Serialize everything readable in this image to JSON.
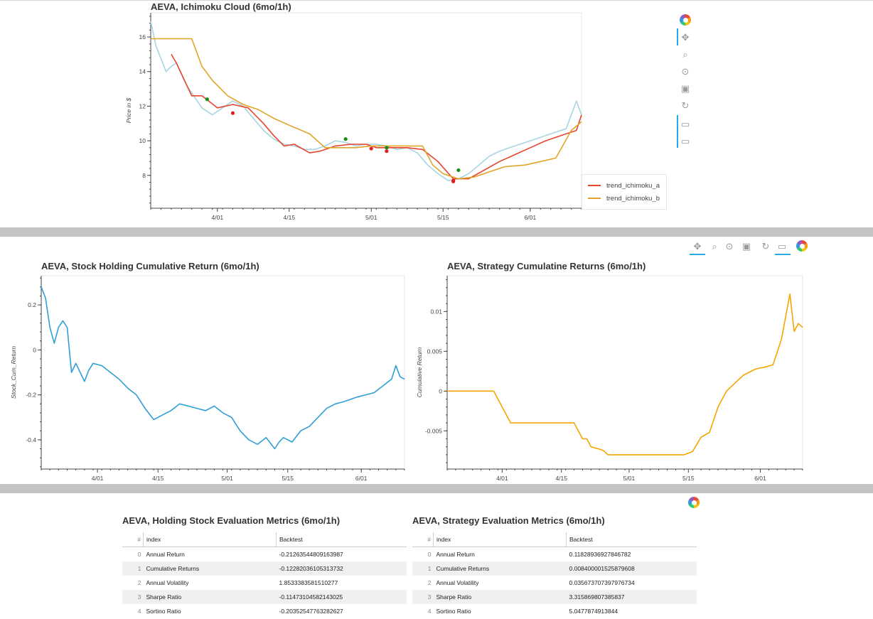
{
  "colors": {
    "price": "#a8d3e3",
    "trend_a": "#e8452c",
    "trend_b": "#e0a427",
    "buy": "#1a8c1a",
    "sell": "#e02020",
    "holding": "#2e9fd6",
    "strategy": "#f5a500"
  },
  "toolbar": {
    "logo_icon": "bokeh-logo-icon",
    "pan_icon": "pan-icon",
    "box_zoom_icon": "box-zoom-icon",
    "wheel_zoom_icon": "wheel-zoom-icon",
    "save_icon": "save-icon",
    "reset_icon": "reset-icon",
    "hover_icon": "hover-icon"
  },
  "chart_data": [
    {
      "type": "line",
      "title": "AEVA, Ichimoku Cloud (6mo/1h)",
      "ylabel": "Price in $",
      "xlabel": "",
      "x_ticks": [
        "4/01",
        "4/15",
        "5/01",
        "5/15",
        "6/01"
      ],
      "y_ticks": [
        "8",
        "10",
        "12",
        "14",
        "16"
      ],
      "xlim": [
        "3/19",
        "6/11"
      ],
      "ylim": [
        6.1,
        17.4
      ],
      "legend_position": "bottom-right-outside",
      "series": [
        {
          "name": "",
          "key": "price",
          "x": [
            "3/19",
            "3/20",
            "3/22",
            "3/23",
            "3/24",
            "3/26",
            "3/29",
            "3/31",
            "4/02",
            "4/04",
            "4/06",
            "4/08",
            "4/10",
            "4/12",
            "4/14",
            "4/16",
            "4/18",
            "4/20",
            "4/22",
            "4/24",
            "4/26",
            "4/28",
            "4/30",
            "5/02",
            "5/04",
            "5/06",
            "5/08",
            "5/10",
            "5/12",
            "5/14",
            "5/16",
            "5/18",
            "5/20",
            "5/22",
            "5/24",
            "5/26",
            "5/28",
            "5/31",
            "6/02",
            "6/04",
            "6/06",
            "6/08",
            "6/10",
            "6/11"
          ],
          "values": [
            16.9,
            15.5,
            14.0,
            14.3,
            14.5,
            13.2,
            11.9,
            11.5,
            11.9,
            12.3,
            12.0,
            11.3,
            10.6,
            10.1,
            9.8,
            9.7,
            9.5,
            9.5,
            9.7,
            10.0,
            9.9,
            9.7,
            9.8,
            9.8,
            9.7,
            9.5,
            9.6,
            9.3,
            8.6,
            8.1,
            7.7,
            7.8,
            8.1,
            8.6,
            9.1,
            9.4,
            9.6,
            9.9,
            10.1,
            10.3,
            10.5,
            10.7,
            12.3,
            11.5
          ]
        },
        {
          "name": "trend_ichimoku_a",
          "key": "trend_a",
          "x": [
            "3/23",
            "3/24",
            "3/27",
            "3/29",
            "4/01",
            "4/04",
            "4/07",
            "4/10",
            "4/12",
            "4/14",
            "4/16",
            "4/19",
            "4/21",
            "4/24",
            "4/27",
            "4/30",
            "5/02",
            "5/05",
            "5/08",
            "5/11",
            "5/14",
            "5/17",
            "5/20",
            "5/23",
            "5/26",
            "5/29",
            "6/01",
            "6/04",
            "6/07",
            "6/10",
            "6/11"
          ],
          "values": [
            15.0,
            14.5,
            12.6,
            12.6,
            11.9,
            12.1,
            11.9,
            11.0,
            10.3,
            9.7,
            9.8,
            9.3,
            9.4,
            9.7,
            9.8,
            9.8,
            9.6,
            9.6,
            9.6,
            9.5,
            8.8,
            7.8,
            7.8,
            8.3,
            8.8,
            9.2,
            9.6,
            10.0,
            10.3,
            10.6,
            11.5
          ]
        },
        {
          "name": "trend_ichimoku_b",
          "key": "trend_b",
          "x": [
            "3/19",
            "3/27",
            "3/29",
            "3/31",
            "4/03",
            "4/06",
            "4/09",
            "4/12",
            "4/15",
            "4/19",
            "4/22",
            "4/25",
            "4/28",
            "5/01",
            "5/04",
            "5/07",
            "5/11",
            "5/13",
            "5/15",
            "5/18",
            "5/21",
            "5/24",
            "5/27",
            "5/31",
            "6/03",
            "6/06",
            "6/09",
            "6/11"
          ],
          "values": [
            15.9,
            15.9,
            14.3,
            13.5,
            12.6,
            12.1,
            11.8,
            11.3,
            10.9,
            10.4,
            9.6,
            9.6,
            9.6,
            9.7,
            9.7,
            9.7,
            9.7,
            8.6,
            8.1,
            7.8,
            7.9,
            8.2,
            8.5,
            8.6,
            8.8,
            9.0,
            10.6,
            11.1
          ]
        }
      ],
      "markers": [
        {
          "kind": "buy",
          "x": "3/30",
          "y": 12.4
        },
        {
          "kind": "sell",
          "x": "4/04",
          "y": 11.6
        },
        {
          "kind": "buy",
          "x": "4/26",
          "y": 10.1
        },
        {
          "kind": "sell",
          "x": "5/01",
          "y": 9.55
        },
        {
          "kind": "buy",
          "x": "5/04",
          "y": 9.6
        },
        {
          "kind": "sell",
          "x": "5/04",
          "y": 9.4
        },
        {
          "kind": "sell",
          "x": "5/17",
          "y": 7.7
        },
        {
          "kind": "sell",
          "x": "5/17",
          "y": 7.65
        },
        {
          "kind": "buy",
          "x": "5/18",
          "y": 8.3
        }
      ]
    },
    {
      "type": "line",
      "title": "AEVA, Stock Holding Cumulative Return (6mo/1h)",
      "ylabel": "Stock_Cum_Return",
      "xlabel": "",
      "x_ticks": [
        "4/01",
        "4/15",
        "5/01",
        "5/15",
        "6/01"
      ],
      "y_ticks": [
        "-0.4",
        "-0.2",
        "0",
        "0.2"
      ],
      "xlim": [
        "3/19",
        "6/11"
      ],
      "ylim": [
        -0.53,
        0.33
      ],
      "series": [
        {
          "name": "",
          "key": "holding",
          "x": [
            "3/19",
            "3/20",
            "3/21",
            "3/22",
            "3/23",
            "3/24",
            "3/25",
            "3/26",
            "3/27",
            "3/28",
            "3/29",
            "3/30",
            "3/31",
            "4/02",
            "4/04",
            "4/06",
            "4/08",
            "4/10",
            "4/12",
            "4/14",
            "4/16",
            "4/18",
            "4/20",
            "4/22",
            "4/24",
            "4/26",
            "4/28",
            "4/30",
            "5/02",
            "5/04",
            "5/06",
            "5/08",
            "5/10",
            "5/12",
            "5/13",
            "5/14",
            "5/16",
            "5/18",
            "5/20",
            "5/22",
            "5/24",
            "5/26",
            "5/28",
            "5/31",
            "6/02",
            "6/04",
            "6/06",
            "6/08",
            "6/09",
            "6/10",
            "6/11"
          ],
          "values": [
            0.28,
            0.23,
            0.1,
            0.03,
            0.1,
            0.13,
            0.1,
            -0.1,
            -0.06,
            -0.1,
            -0.14,
            -0.09,
            -0.06,
            -0.07,
            -0.1,
            -0.13,
            -0.17,
            -0.2,
            -0.26,
            -0.31,
            -0.29,
            -0.27,
            -0.24,
            -0.25,
            -0.26,
            -0.27,
            -0.25,
            -0.28,
            -0.3,
            -0.36,
            -0.4,
            -0.42,
            -0.39,
            -0.44,
            -0.41,
            -0.39,
            -0.41,
            -0.36,
            -0.34,
            -0.3,
            -0.26,
            -0.24,
            -0.23,
            -0.21,
            -0.2,
            -0.19,
            -0.16,
            -0.13,
            -0.07,
            -0.12,
            -0.13
          ]
        }
      ]
    },
    {
      "type": "line",
      "title": "AEVA, Strategy Cumulatine Returns (6mo/1h)",
      "ylabel": "Cumulative Return",
      "xlabel": "",
      "x_ticks": [
        "4/01",
        "4/15",
        "5/01",
        "5/15",
        "6/01"
      ],
      "y_ticks": [
        "-0.005",
        "0",
        "0.005",
        "0.01"
      ],
      "xlim": [
        "3/19",
        "6/11"
      ],
      "ylim": [
        -0.0098,
        0.0145
      ],
      "series": [
        {
          "name": "",
          "key": "strategy",
          "x": [
            "3/19",
            "3/30",
            "3/31",
            "4/01",
            "4/02",
            "4/03",
            "4/18",
            "4/19",
            "4/20",
            "4/21",
            "4/22",
            "4/24",
            "4/25",
            "4/26",
            "5/10",
            "5/12",
            "5/14",
            "5/16",
            "5/18",
            "5/20",
            "5/22",
            "5/24",
            "5/26",
            "5/28",
            "5/31",
            "6/02",
            "6/04",
            "6/06",
            "6/08",
            "6/09",
            "6/10",
            "6/11"
          ],
          "values": [
            0,
            0,
            -0.001,
            -0.002,
            -0.003,
            -0.004,
            -0.004,
            -0.005,
            -0.006,
            -0.006,
            -0.007,
            -0.0073,
            -0.0075,
            -0.008,
            -0.008,
            -0.008,
            -0.008,
            -0.0076,
            -0.0058,
            -0.0052,
            -0.002,
            0,
            0.001,
            0.002,
            0.0028,
            0.003,
            0.0033,
            0.0065,
            0.0122,
            0.0075,
            0.0085,
            0.008
          ]
        }
      ]
    }
  ],
  "metrics_tables": [
    {
      "title": "AEVA, Holding Stock Evaluation Metrics (6mo/1h)",
      "headers": [
        "#",
        "index",
        "Backtest"
      ],
      "rows": [
        {
          "num": "0",
          "index": "Annual Return",
          "value": "-0.21263544809163987"
        },
        {
          "num": "1",
          "index": "Cumulative Returns",
          "value": "-0.12282036105313732"
        },
        {
          "num": "2",
          "index": "Annual Volatility",
          "value": "1.8533383581510277"
        },
        {
          "num": "3",
          "index": "Sharpe Ratio",
          "value": "-0.11473104582143025"
        },
        {
          "num": "4",
          "index": "Sortino Ratio",
          "value": "-0.20352547763282627"
        }
      ]
    },
    {
      "title": "AEVA, Strategy Evaluation Metrics (6mo/1h)",
      "headers": [
        "#",
        "index",
        "Backtest"
      ],
      "rows": [
        {
          "num": "0",
          "index": "Annual Return",
          "value": "0.11828936927846782"
        },
        {
          "num": "1",
          "index": "Cumulative Returns",
          "value": "0.008400001525879608"
        },
        {
          "num": "2",
          "index": "Annual Volatility",
          "value": "0.035673707397976734"
        },
        {
          "num": "3",
          "index": "Sharpe Ratio",
          "value": "3.315869807385837"
        },
        {
          "num": "4",
          "index": "Sortino Ratio",
          "value": "5.0477874913844"
        }
      ]
    }
  ]
}
